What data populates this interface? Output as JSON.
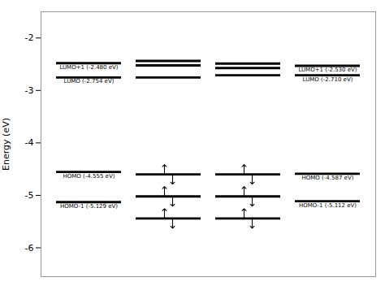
{
  "chart_data": {
    "type": "energy_levels",
    "ylabel": "Energy (eV)",
    "ylim": [
      -6.55,
      -1.5
    ],
    "yticks": [
      -6,
      -5,
      -4,
      -3,
      -2
    ],
    "background_color": "#ffffff",
    "color": "#000000",
    "categories": [
      null,
      null,
      null,
      null
    ],
    "columns": [
      {
        "values": [
          -2.48,
          -2.754,
          -4.555,
          -5.129
        ],
        "value_labels": [
          "LUMO+1 (-2.480 eV)",
          "LUMO (-2.754 eV)",
          "HOMO (-4.555 eV)",
          "HOMO-1 (-5.129 eV)"
        ],
        "electrons": [
          0,
          0,
          0,
          0
        ]
      },
      {
        "values": [
          -2.4375,
          -2.5225,
          -2.754,
          -4.6,
          -5.02,
          -5.44
        ],
        "electrons": [
          0,
          0,
          0,
          2,
          2,
          2
        ]
      },
      {
        "values": [
          -2.4875,
          -2.5725,
          -2.71,
          -4.6,
          -5.02,
          -5.44
        ],
        "electrons": [
          0,
          0,
          0,
          2,
          2,
          2
        ]
      },
      {
        "values": [
          -2.53,
          -2.71,
          -4.587,
          -5.112
        ],
        "value_labels": [
          "LUMO+1 (-2.530 eV)",
          "LUMO (-2.710 eV)",
          "HOMO (-4.587 eV)",
          "HOMO-1 (-5.112 eV)"
        ],
        "electrons": [
          0,
          0,
          0,
          0
        ]
      }
    ]
  }
}
